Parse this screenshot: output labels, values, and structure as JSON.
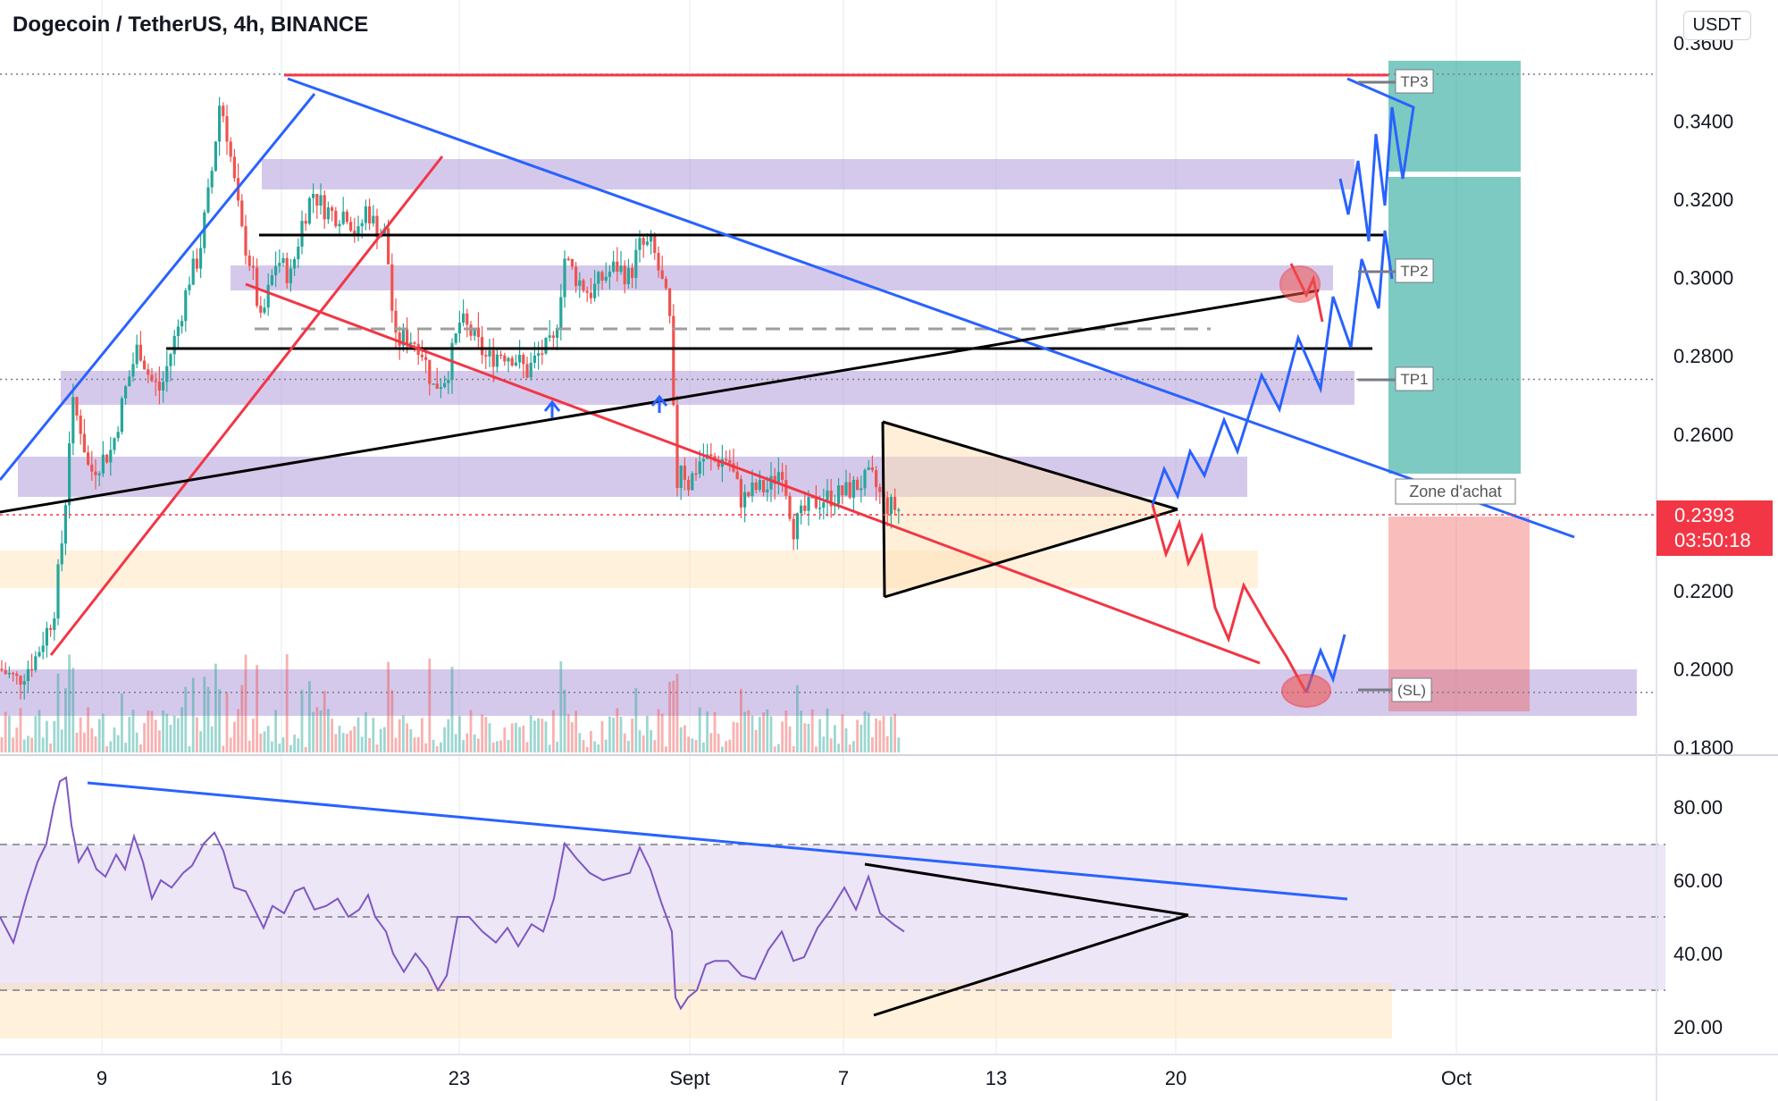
{
  "header": {
    "title": "Dogecoin / TetherUS, 4h, BINANCE",
    "currency": "USDT"
  },
  "price_axis": {
    "ticks": [
      "0.3600",
      "0.3400",
      "0.3200",
      "0.3000",
      "0.2800",
      "0.2600",
      "0.2400",
      "0.2200",
      "0.2000",
      "0.1800"
    ],
    "current_price": "0.2393",
    "countdown": "03:50:18"
  },
  "rsi_axis": {
    "ticks": [
      "80.00",
      "60.00",
      "40.00",
      "20.00"
    ]
  },
  "time_axis": {
    "ticks": [
      "9",
      "16",
      "23",
      "Sept",
      "7",
      "13",
      "20",
      "Oct"
    ]
  },
  "labels": {
    "tp3": "TP3",
    "tp2": "TP2",
    "tp1": "TP1",
    "sl": "(SL)",
    "zone": "Zone d'achat"
  },
  "colors": {
    "bull": "#26a69a",
    "bear": "#ef5350",
    "zone_purple": "#b39ddb",
    "zone_orange": "#ffe0b2",
    "trend_blue": "#2962ff",
    "trend_red": "#f23645",
    "rsi": "#7e57c2"
  },
  "chart_data": [
    {
      "type": "candlestick",
      "title": "Dogecoin / TetherUS, 4h, BINANCE",
      "x_ticks": [
        "9",
        "16",
        "23",
        "Sept",
        "7",
        "13",
        "20",
        "Oct"
      ],
      "ylim": [
        0.18,
        0.36
      ],
      "y_ticks": [
        0.18,
        0.2,
        0.22,
        0.24,
        0.26,
        0.28,
        0.3,
        0.32,
        0.34,
        0.36
      ],
      "approx_close_path": [
        [
          0,
          0.2
        ],
        [
          20,
          0.197
        ],
        [
          40,
          0.203
        ],
        [
          60,
          0.214
        ],
        [
          72,
          0.238
        ],
        [
          80,
          0.268
        ],
        [
          90,
          0.262
        ],
        [
          100,
          0.25
        ],
        [
          112,
          0.253
        ],
        [
          125,
          0.256
        ],
        [
          140,
          0.271
        ],
        [
          155,
          0.283
        ],
        [
          168,
          0.274
        ],
        [
          180,
          0.271
        ],
        [
          190,
          0.28
        ],
        [
          200,
          0.288
        ],
        [
          212,
          0.3
        ],
        [
          222,
          0.305
        ],
        [
          236,
          0.325
        ],
        [
          246,
          0.345
        ],
        [
          252,
          0.34
        ],
        [
          258,
          0.331
        ],
        [
          270,
          0.312
        ],
        [
          282,
          0.302
        ],
        [
          292,
          0.288
        ],
        [
          300,
          0.296
        ],
        [
          310,
          0.305
        ],
        [
          325,
          0.3
        ],
        [
          338,
          0.314
        ],
        [
          350,
          0.322
        ],
        [
          362,
          0.318
        ],
        [
          375,
          0.316
        ],
        [
          388,
          0.317
        ],
        [
          400,
          0.31
        ],
        [
          410,
          0.318
        ],
        [
          420,
          0.313
        ],
        [
          432,
          0.311
        ],
        [
          442,
          0.283
        ],
        [
          455,
          0.285
        ],
        [
          470,
          0.283
        ],
        [
          485,
          0.272
        ],
        [
          500,
          0.275
        ],
        [
          515,
          0.289
        ],
        [
          530,
          0.285
        ],
        [
          545,
          0.279
        ],
        [
          560,
          0.281
        ],
        [
          575,
          0.28
        ],
        [
          590,
          0.276
        ],
        [
          605,
          0.281
        ],
        [
          620,
          0.283
        ],
        [
          632,
          0.305
        ],
        [
          645,
          0.3
        ],
        [
          660,
          0.296
        ],
        [
          675,
          0.3
        ],
        [
          690,
          0.303
        ],
        [
          705,
          0.3
        ],
        [
          715,
          0.308
        ],
        [
          730,
          0.308
        ],
        [
          745,
          0.295
        ],
        [
          752,
          0.285
        ],
        [
          756,
          0.24
        ],
        [
          760,
          0.255
        ],
        [
          770,
          0.247
        ],
        [
          785,
          0.254
        ],
        [
          800,
          0.253
        ],
        [
          815,
          0.254
        ],
        [
          830,
          0.243
        ],
        [
          845,
          0.246
        ],
        [
          860,
          0.246
        ],
        [
          875,
          0.252
        ],
        [
          888,
          0.236
        ],
        [
          900,
          0.24
        ],
        [
          915,
          0.243
        ],
        [
          930,
          0.244
        ],
        [
          945,
          0.245
        ],
        [
          960,
          0.247
        ],
        [
          975,
          0.249
        ],
        [
          990,
          0.242
        ],
        [
          1005,
          0.241
        ],
        [
          1010,
          0.239
        ]
      ],
      "current_price": 0.2393,
      "levels": {
        "TP3": 0.352,
        "TP2": 0.3,
        "TP1": 0.274,
        "Zone d'achat": 0.245,
        "SL": 0.194
      }
    },
    {
      "type": "line",
      "ylim": [
        15,
        90
      ],
      "y_ticks": [
        20,
        40,
        60,
        80
      ],
      "values": [
        [
          0,
          50
        ],
        [
          15,
          43
        ],
        [
          30,
          56
        ],
        [
          42,
          65
        ],
        [
          52,
          70
        ],
        [
          60,
          80
        ],
        [
          67,
          87
        ],
        [
          74,
          88
        ],
        [
          80,
          75
        ],
        [
          88,
          65
        ],
        [
          98,
          69
        ],
        [
          108,
          63
        ],
        [
          118,
          61
        ],
        [
          130,
          67
        ],
        [
          140,
          63
        ],
        [
          150,
          72
        ],
        [
          160,
          65
        ],
        [
          170,
          55
        ],
        [
          180,
          60
        ],
        [
          192,
          58
        ],
        [
          205,
          62
        ],
        [
          215,
          64
        ],
        [
          228,
          70
        ],
        [
          240,
          73
        ],
        [
          250,
          68
        ],
        [
          262,
          58
        ],
        [
          275,
          57
        ],
        [
          285,
          52
        ],
        [
          295,
          47
        ],
        [
          305,
          53
        ],
        [
          318,
          51
        ],
        [
          330,
          57
        ],
        [
          340,
          58
        ],
        [
          352,
          52
        ],
        [
          365,
          53
        ],
        [
          378,
          55
        ],
        [
          390,
          50
        ],
        [
          402,
          52
        ],
        [
          412,
          56
        ],
        [
          420,
          50
        ],
        [
          432,
          46
        ],
        [
          440,
          40
        ],
        [
          452,
          35
        ],
        [
          465,
          40
        ],
        [
          478,
          36
        ],
        [
          490,
          30
        ],
        [
          500,
          34
        ],
        [
          512,
          50
        ],
        [
          525,
          50
        ],
        [
          540,
          46
        ],
        [
          555,
          43
        ],
        [
          568,
          47
        ],
        [
          580,
          42
        ],
        [
          595,
          48
        ],
        [
          608,
          46
        ],
        [
          620,
          55
        ],
        [
          632,
          70
        ],
        [
          645,
          66
        ],
        [
          660,
          62
        ],
        [
          675,
          60
        ],
        [
          690,
          61
        ],
        [
          705,
          62
        ],
        [
          716,
          69
        ],
        [
          728,
          63
        ],
        [
          740,
          54
        ],
        [
          752,
          46
        ],
        [
          756,
          28
        ],
        [
          762,
          25
        ],
        [
          770,
          28
        ],
        [
          780,
          30
        ],
        [
          790,
          37
        ],
        [
          800,
          38
        ],
        [
          815,
          38
        ],
        [
          830,
          34
        ],
        [
          845,
          33
        ],
        [
          860,
          41
        ],
        [
          875,
          46
        ],
        [
          888,
          38
        ],
        [
          900,
          39
        ],
        [
          915,
          47
        ],
        [
          930,
          52
        ],
        [
          945,
          58
        ],
        [
          958,
          52
        ],
        [
          972,
          61
        ],
        [
          985,
          51
        ],
        [
          1000,
          48
        ],
        [
          1012,
          46
        ]
      ]
    }
  ]
}
